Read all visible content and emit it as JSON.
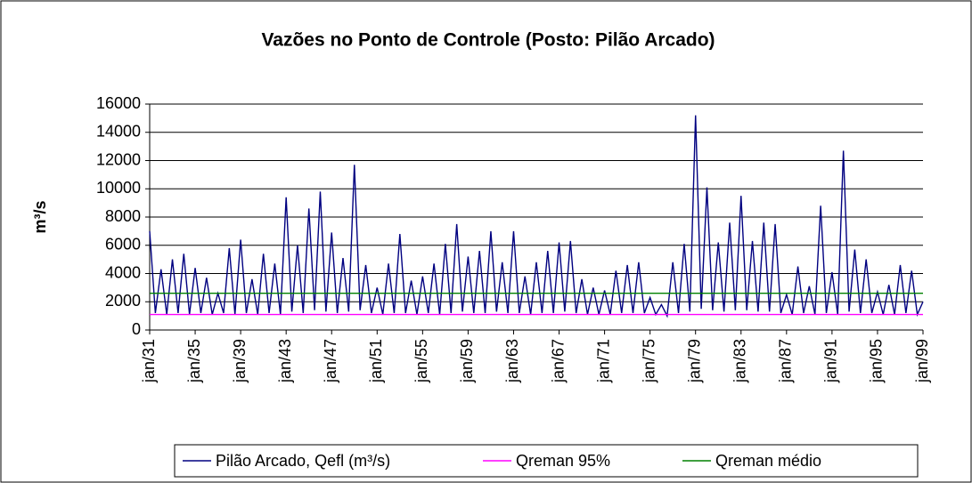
{
  "chart_data": {
    "type": "line",
    "title": "Vazões no Ponto de Controle (Posto: Pilão Arcado)",
    "y_label": "m³/s",
    "categories": [
      "jan/31",
      null,
      null,
      null,
      null,
      null,
      null,
      null,
      "jan/35",
      null,
      null,
      null,
      null,
      null,
      null,
      null,
      "jan/39",
      null,
      null,
      null,
      null,
      null,
      null,
      null,
      "jan/43",
      null,
      null,
      null,
      null,
      null,
      null,
      null,
      "jan/47",
      null,
      null,
      null,
      null,
      null,
      null,
      null,
      "jan/51",
      null,
      null,
      null,
      null,
      null,
      null,
      null,
      "jan/55",
      null,
      null,
      null,
      null,
      null,
      null,
      null,
      "jan/59",
      null,
      null,
      null,
      null,
      null,
      null,
      null,
      "jan/63",
      null,
      null,
      null,
      null,
      null,
      null,
      null,
      "jan/67",
      null,
      null,
      null,
      null,
      null,
      null,
      null,
      "jan/71",
      null,
      null,
      null,
      null,
      null,
      null,
      null,
      "jan/75",
      null,
      null,
      null,
      null,
      null,
      null,
      null,
      "jan/79",
      null,
      null,
      null,
      null,
      null,
      null,
      null,
      "jan/83",
      null,
      null,
      null,
      null,
      null,
      null,
      null,
      "jan/87",
      null,
      null,
      null,
      null,
      null,
      null,
      null,
      "jan/91",
      null,
      null,
      null,
      null,
      null,
      null,
      null,
      "jan/95",
      null,
      null,
      null,
      null,
      null,
      null,
      null,
      "jan/99"
    ],
    "series": [
      {
        "name": "Pilão Arcado, Qefl (m³/s)",
        "color": "#000080",
        "values": [
          7000,
          1200,
          4300,
          1100,
          5000,
          1200,
          5400,
          1100,
          4400,
          1200,
          3700,
          1100,
          2600,
          1200,
          5800,
          1100,
          6400,
          1200,
          3600,
          1100,
          5400,
          1200,
          4700,
          1100,
          9400,
          1300,
          6000,
          1200,
          8600,
          1400,
          9800,
          1300,
          6900,
          1200,
          5100,
          1300,
          11700,
          1400,
          4600,
          1200,
          3000,
          1100,
          4700,
          1200,
          6800,
          1200,
          3500,
          1100,
          3800,
          1200,
          4700,
          1100,
          6100,
          1200,
          7500,
          1300,
          5200,
          1200,
          5600,
          1200,
          7000,
          1300,
          4800,
          1200,
          7000,
          1200,
          3800,
          1100,
          4800,
          1200,
          5600,
          1200,
          6200,
          1300,
          6300,
          1200,
          3600,
          1100,
          3000,
          1100,
          2800,
          1100,
          4200,
          1200,
          4600,
          1200,
          4800,
          1200,
          2300,
          1100,
          1800,
          1000,
          4800,
          1200,
          6100,
          1300,
          15200,
          1500,
          10100,
          1400,
          6200,
          1300,
          7600,
          1400,
          9500,
          1400,
          6300,
          1300,
          7600,
          1300,
          7500,
          1200,
          2500,
          1100,
          4500,
          1200,
          3100,
          1100,
          8800,
          1200,
          4100,
          1100,
          12700,
          1300,
          5700,
          1200,
          5000,
          1200,
          2700,
          1100,
          3200,
          1100,
          4600,
          1200,
          4200,
          1100,
          2000
        ]
      },
      {
        "name": "Qreman 95%",
        "color": "#ff00ff",
        "values": [
          1100,
          1100,
          1100,
          1100,
          1100,
          1100,
          1100,
          1100,
          1100,
          1100,
          1100,
          1100,
          1100,
          1100,
          1100,
          1100,
          1100,
          1100,
          1100,
          1100,
          1100,
          1100,
          1100,
          1100,
          1100,
          1100,
          1100,
          1100,
          1100,
          1100,
          1100,
          1100,
          1100,
          1100,
          1100,
          1100,
          1100,
          1100,
          1100,
          1100,
          1100,
          1100,
          1100,
          1100,
          1100,
          1100,
          1100,
          1100,
          1100,
          1100,
          1100,
          1100,
          1100,
          1100,
          1100,
          1100,
          1100,
          1100,
          1100,
          1100,
          1100,
          1100,
          1100,
          1100,
          1100,
          1100,
          1100,
          1100,
          1100,
          1100,
          1100,
          1100,
          1100,
          1100,
          1100,
          1100,
          1100,
          1100,
          1100,
          1100,
          1100,
          1100,
          1100,
          1100,
          1100,
          1100,
          1100,
          1100,
          1100,
          1100,
          1100,
          1100,
          1100,
          1100,
          1100,
          1100,
          1100,
          1100,
          1100,
          1100,
          1100,
          1100,
          1100,
          1100,
          1100,
          1100,
          1100,
          1100,
          1100,
          1100,
          1100,
          1100,
          1100,
          1100,
          1100,
          1100,
          1100,
          1100,
          1100,
          1100,
          1100,
          1100,
          1100,
          1100,
          1100,
          1100,
          1100,
          1100,
          1100,
          1100,
          1100,
          1100,
          1100,
          1100,
          1100,
          1100,
          1100
        ]
      },
      {
        "name": "Qreman médio",
        "color": "#008000",
        "values": [
          2600,
          2600,
          2600,
          2600,
          2600,
          2600,
          2600,
          2600,
          2600,
          2600,
          2600,
          2600,
          2600,
          2600,
          2600,
          2600,
          2600,
          2600,
          2600,
          2600,
          2600,
          2600,
          2600,
          2600,
          2600,
          2600,
          2600,
          2600,
          2600,
          2600,
          2600,
          2600,
          2600,
          2600,
          2600,
          2600,
          2600,
          2600,
          2600,
          2600,
          2600,
          2600,
          2600,
          2600,
          2600,
          2600,
          2600,
          2600,
          2600,
          2600,
          2600,
          2600,
          2600,
          2600,
          2600,
          2600,
          2600,
          2600,
          2600,
          2600,
          2600,
          2600,
          2600,
          2600,
          2600,
          2600,
          2600,
          2600,
          2600,
          2600,
          2600,
          2600,
          2600,
          2600,
          2600,
          2600,
          2600,
          2600,
          2600,
          2600,
          2600,
          2600,
          2600,
          2600,
          2600,
          2600,
          2600,
          2600,
          2600,
          2600,
          2600,
          2600,
          2600,
          2600,
          2600,
          2600,
          2600,
          2600,
          2600,
          2600,
          2600,
          2600,
          2600,
          2600,
          2600,
          2600,
          2600,
          2600,
          2600,
          2600,
          2600,
          2600,
          2600,
          2600,
          2600,
          2600,
          2600,
          2600,
          2600,
          2600,
          2600,
          2600,
          2600,
          2600,
          2600,
          2600,
          2600,
          2600,
          2600,
          2600,
          2600,
          2600,
          2600,
          2600,
          2600,
          2600,
          2600
        ]
      }
    ],
    "ylim": [
      0,
      16000
    ],
    "yticks": [
      0,
      2000,
      4000,
      6000,
      8000,
      10000,
      12000,
      14000,
      16000
    ],
    "grid": true,
    "legend": "bottom"
  }
}
